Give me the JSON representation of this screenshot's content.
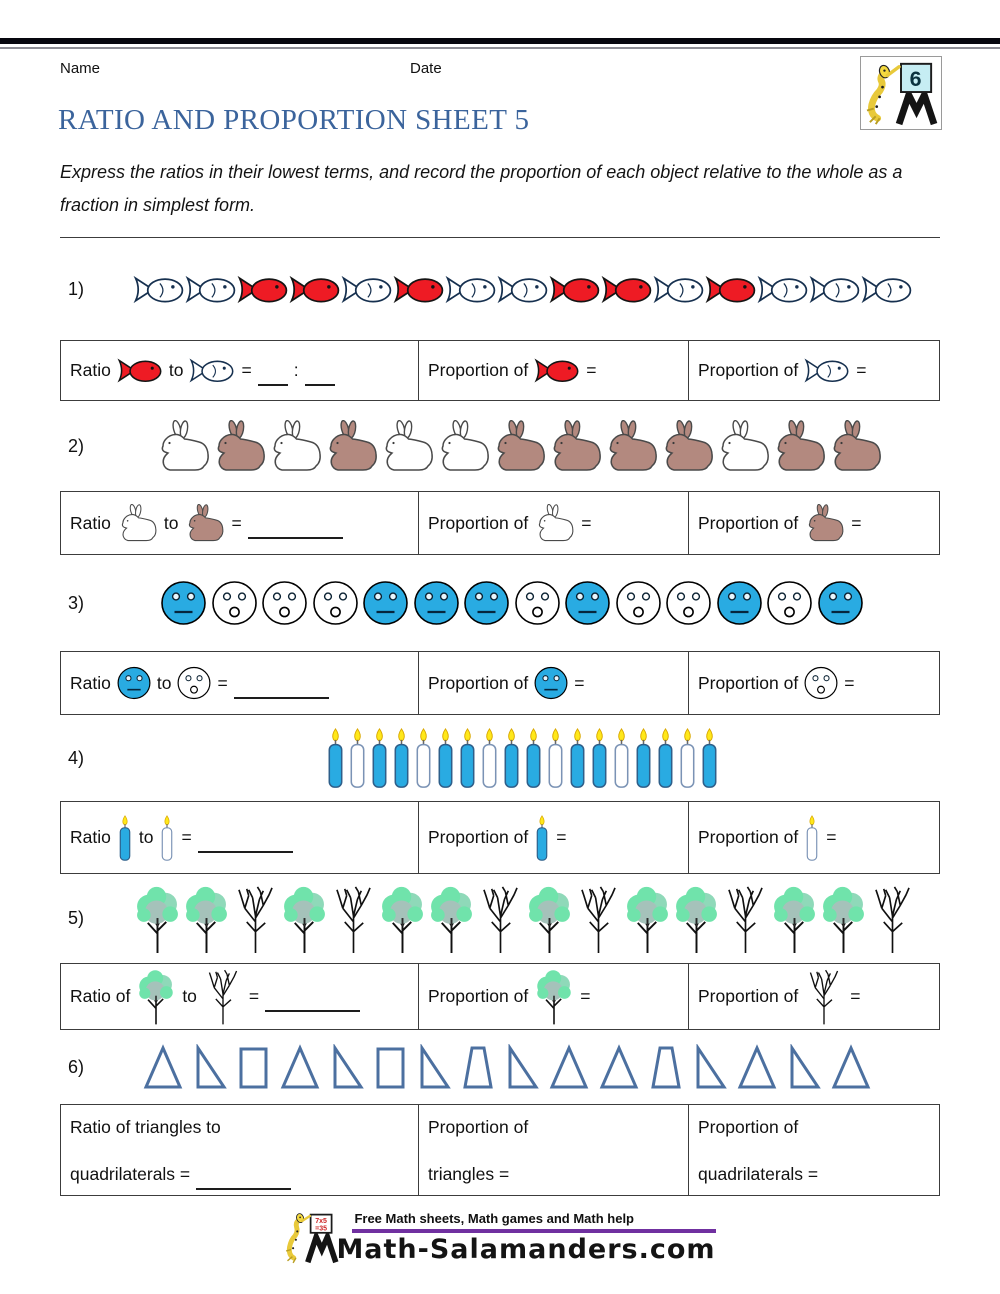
{
  "header": {
    "name_label": "Name",
    "date_label": "Date",
    "badge_number": "6"
  },
  "title": "RATIO AND PROPORTION SHEET 5",
  "instructions": "Express the ratios in their lowest terms, and record the proportion of each object relative to the whole as a fraction in simplest form.",
  "colors": {
    "title_blue": "#3b649c",
    "fish_red": "#ee1b24",
    "icon_blue": "#29abe2",
    "rabbit_brown": "#b3897f",
    "tree_green": "#70e3ab",
    "shape_blue": "#4c70a0",
    "footer_purple": "#7030a0"
  },
  "problems": [
    {
      "number": "1)",
      "icon_type": "fish",
      "sequence": [
        "white",
        "white",
        "red",
        "red",
        "white",
        "red",
        "white",
        "white",
        "red",
        "red",
        "white",
        "red",
        "white",
        "white",
        "white"
      ],
      "cells": {
        "ratio_label": "Ratio",
        "to_label": "to",
        "equals": "=",
        "colon": ":",
        "proportion_label": "Proportion of",
        "first": "red",
        "second": "white"
      }
    },
    {
      "number": "2)",
      "icon_type": "rabbit",
      "sequence": [
        "white",
        "brown",
        "white",
        "brown",
        "white",
        "white",
        "brown",
        "brown",
        "brown",
        "brown",
        "white",
        "brown",
        "brown"
      ],
      "cells": {
        "ratio_label": "Ratio",
        "to_label": "to",
        "equals": "=",
        "proportion_label": "Proportion of",
        "first": "white",
        "second": "brown"
      }
    },
    {
      "number": "3)",
      "icon_type": "face",
      "sequence": [
        "blue",
        "white",
        "white",
        "white",
        "blue",
        "blue",
        "blue",
        "white",
        "blue",
        "white",
        "white",
        "blue",
        "white",
        "blue"
      ],
      "cells": {
        "ratio_label": "Ratio",
        "to_label": "to",
        "equals": "=",
        "proportion_label": "Proportion of",
        "first": "blue",
        "second": "white"
      }
    },
    {
      "number": "4)",
      "icon_type": "candle",
      "sequence": [
        "blue",
        "white",
        "blue",
        "blue",
        "white",
        "blue",
        "blue",
        "white",
        "blue",
        "blue",
        "white",
        "blue",
        "blue",
        "white",
        "blue",
        "blue",
        "white",
        "blue"
      ],
      "cells": {
        "ratio_label": "Ratio",
        "to_label": "to",
        "equals": "=",
        "proportion_label": "Proportion of",
        "first": "blue",
        "second": "white"
      }
    },
    {
      "number": "5)",
      "icon_type": "tree",
      "sequence": [
        "green",
        "green",
        "bare",
        "green",
        "bare",
        "green",
        "green",
        "bare",
        "green",
        "bare",
        "green",
        "green",
        "bare",
        "green",
        "green",
        "bare"
      ],
      "cells": {
        "ratio_label": "Ratio of",
        "to_label": "to",
        "equals": "=",
        "proportion_label": "Proportion of",
        "first": "green",
        "second": "bare"
      }
    },
    {
      "number": "6)",
      "icon_type": "shape",
      "sequence": [
        "triangle",
        "right-triangle",
        "rect",
        "triangle",
        "right-triangle",
        "rect",
        "right-triangle",
        "trapezoid",
        "right-triangle",
        "triangle",
        "triangle",
        "trapezoid",
        "right-triangle",
        "triangle",
        "right-triangle",
        "triangle"
      ],
      "cells": {
        "ratio_line1": "Ratio of triangles to",
        "ratio_line2": "quadrilaterals =",
        "proportion_label": "Proportion of",
        "prop_first_object": "triangles =",
        "prop_second_object": "quadrilaterals ="
      }
    }
  ],
  "footer": {
    "tagline": "Free Math sheets, Math games and Math help",
    "site": "Math-Salamanders.com",
    "board_line1": "7x5",
    "board_line2": "=35"
  }
}
